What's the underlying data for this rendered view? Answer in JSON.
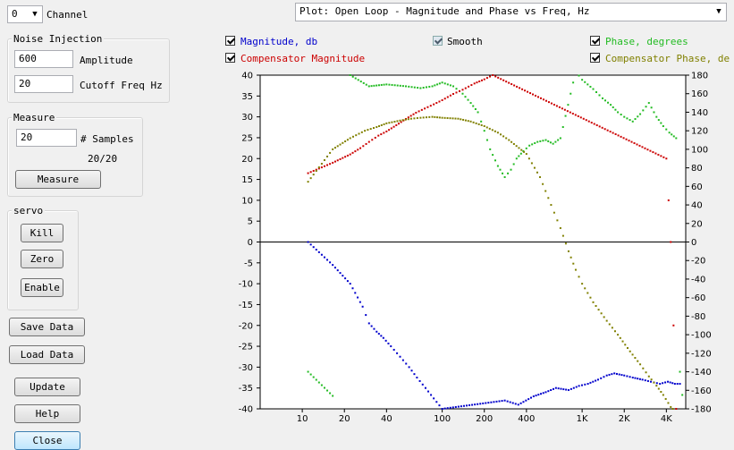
{
  "channel": {
    "value": "0",
    "label": "Channel"
  },
  "noise_injection": {
    "title": "Noise Injection",
    "amplitude_value": "600",
    "amplitude_label": "Amplitude",
    "cutoff_value": "20",
    "cutoff_label": "Cutoff Freq Hz"
  },
  "measure": {
    "title": "Measure",
    "samples_value": "20",
    "samples_label": "# Samples",
    "progress_text": "20/20",
    "button": "Measure"
  },
  "servo": {
    "title": "servo",
    "kill": "Kill",
    "zero": "Zero",
    "enable": "Enable"
  },
  "buttons": {
    "save_data": "Save Data",
    "load_data": "Load Data",
    "update": "Update",
    "help": "Help",
    "close": "Close"
  },
  "plot_select": {
    "value": "Plot: Open Loop - Magnitude and Phase vs Freq, Hz"
  },
  "legend": {
    "magnitude": {
      "label": "Magnitude, db",
      "color": "#0000cc",
      "checked": true
    },
    "smooth": {
      "label": "Smooth",
      "checked": true
    },
    "phase": {
      "label": "Phase, degrees",
      "color": "#22bb22",
      "checked": true
    },
    "comp_magnitude": {
      "label": "Compensator Magnitude",
      "color": "#cc0000",
      "checked": true
    },
    "comp_phase": {
      "label": "Compensator Phase, de",
      "color": "#808000",
      "checked": true
    }
  },
  "chart_data": {
    "type": "scatter",
    "title": "",
    "x_scale": "log",
    "xlim": [
      5,
      5500
    ],
    "x_ticks": [
      {
        "value": 10,
        "label": "10"
      },
      {
        "value": 20,
        "label": "20"
      },
      {
        "value": 40,
        "label": "40"
      },
      {
        "value": 100,
        "label": "100"
      },
      {
        "value": 200,
        "label": "200"
      },
      {
        "value": 400,
        "label": "400"
      },
      {
        "value": 1000,
        "label": "1K"
      },
      {
        "value": 2000,
        "label": "2K"
      },
      {
        "value": 4000,
        "label": "4K"
      }
    ],
    "y_left": {
      "lim": [
        -40,
        40
      ],
      "ticks": [
        40,
        35,
        30,
        25,
        20,
        15,
        10,
        5,
        0,
        -5,
        -10,
        -15,
        -20,
        -25,
        -30,
        -35,
        -40
      ]
    },
    "y_right": {
      "lim": [
        -180,
        180
      ],
      "ticks": [
        180,
        160,
        140,
        120,
        100,
        80,
        60,
        40,
        20,
        0,
        -20,
        -40,
        -60,
        -80,
        -100,
        -120,
        -140,
        -160,
        -180
      ]
    },
    "zero_line": true,
    "series": [
      {
        "name": "Magnitude, db",
        "color": "#0000cc",
        "axis": "left",
        "points": [
          [
            11,
            0
          ],
          [
            16.5,
            -5.5
          ],
          [
            22,
            -10
          ],
          [
            27,
            -15.5
          ],
          [
            30,
            -19.5
          ],
          [
            34,
            -21.5
          ],
          [
            38,
            -23
          ],
          [
            43,
            -25
          ],
          [
            50,
            -27.5
          ],
          [
            58,
            -30
          ],
          [
            66,
            -32.5
          ],
          [
            76,
            -35
          ],
          [
            87,
            -37.5
          ],
          [
            100,
            -40
          ],
          [
            280,
            -38
          ],
          [
            350,
            -39
          ],
          [
            450,
            -37
          ],
          [
            550,
            -36
          ],
          [
            650,
            -35
          ],
          [
            800,
            -35.5
          ],
          [
            950,
            -34.5
          ],
          [
            1100,
            -34
          ],
          [
            1300,
            -33
          ],
          [
            1500,
            -32
          ],
          [
            1700,
            -31.5
          ],
          [
            2000,
            -32
          ],
          [
            2300,
            -32.5
          ],
          [
            2700,
            -33
          ],
          [
            3100,
            -33.5
          ],
          [
            3600,
            -34
          ],
          [
            4100,
            -33.5
          ],
          [
            4600,
            -34
          ],
          [
            5000,
            -34
          ]
        ]
      },
      {
        "name": "Phase, degrees",
        "color": "#22bb22",
        "axis": "right",
        "points": [
          [
            11,
            -140
          ],
          [
            16.5,
            -166
          ],
          [
            22,
            180
          ],
          [
            30,
            168
          ],
          [
            40,
            170
          ],
          [
            55,
            168
          ],
          [
            70,
            166
          ],
          [
            85,
            168
          ],
          [
            100,
            172
          ],
          [
            120,
            168
          ],
          [
            140,
            160
          ],
          [
            160,
            150
          ],
          [
            180,
            140
          ],
          [
            200,
            120
          ],
          [
            220,
            100
          ],
          [
            250,
            82
          ],
          [
            280,
            70
          ],
          [
            310,
            78
          ],
          [
            340,
            90
          ],
          [
            380,
            98
          ],
          [
            420,
            104
          ],
          [
            480,
            108
          ],
          [
            550,
            110
          ],
          [
            620,
            106
          ],
          [
            700,
            112
          ],
          [
            900,
            184
          ],
          [
            1000,
            175
          ],
          [
            1200,
            165
          ],
          [
            1400,
            155
          ],
          [
            1600,
            148
          ],
          [
            1800,
            140
          ],
          [
            2000,
            135
          ],
          [
            2300,
            130
          ],
          [
            2600,
            138
          ],
          [
            3000,
            150
          ],
          [
            3400,
            135
          ],
          [
            3800,
            125
          ],
          [
            4200,
            118
          ],
          [
            4700,
            112
          ],
          [
            5000,
            -140
          ],
          [
            5200,
            -165
          ]
        ]
      },
      {
        "name": "Compensator Magnitude",
        "color": "#cc0000",
        "axis": "left",
        "points": [
          [
            11,
            16.5
          ],
          [
            16.5,
            19
          ],
          [
            22,
            21
          ],
          [
            26,
            22.5
          ],
          [
            30,
            24
          ],
          [
            35,
            25.5
          ],
          [
            40,
            26.5
          ],
          [
            47,
            28
          ],
          [
            55,
            29.5
          ],
          [
            65,
            31
          ],
          [
            75,
            32
          ],
          [
            87,
            33
          ],
          [
            100,
            34
          ],
          [
            120,
            35.5
          ],
          [
            140,
            36.5
          ],
          [
            170,
            38
          ],
          [
            200,
            39
          ],
          [
            230,
            40
          ],
          [
            4000,
            20
          ],
          [
            4300,
            0
          ],
          [
            4500,
            -20
          ],
          [
            4700,
            -40
          ]
        ]
      },
      {
        "name": "Compensator Phase, degrees",
        "color": "#808000",
        "axis": "right",
        "points": [
          [
            11,
            65
          ],
          [
            16.5,
            100
          ],
          [
            22,
            112
          ],
          [
            28,
            120
          ],
          [
            34,
            124
          ],
          [
            40,
            128
          ],
          [
            50,
            131
          ],
          [
            60,
            133
          ],
          [
            70,
            134
          ],
          [
            85,
            135
          ],
          [
            100,
            134
          ],
          [
            130,
            133
          ],
          [
            160,
            130
          ],
          [
            200,
            125
          ],
          [
            250,
            118
          ],
          [
            300,
            110
          ],
          [
            400,
            95
          ],
          [
            500,
            70
          ],
          [
            600,
            40
          ],
          [
            700,
            15
          ],
          [
            800,
            -10
          ],
          [
            900,
            -30
          ],
          [
            1000,
            -45
          ],
          [
            1200,
            -65
          ],
          [
            1500,
            -85
          ],
          [
            1800,
            -100
          ],
          [
            2200,
            -118
          ],
          [
            2600,
            -132
          ],
          [
            3000,
            -145
          ],
          [
            3400,
            -155
          ],
          [
            3800,
            -165
          ],
          [
            4300,
            -178
          ],
          [
            4600,
            -182
          ]
        ]
      }
    ]
  }
}
